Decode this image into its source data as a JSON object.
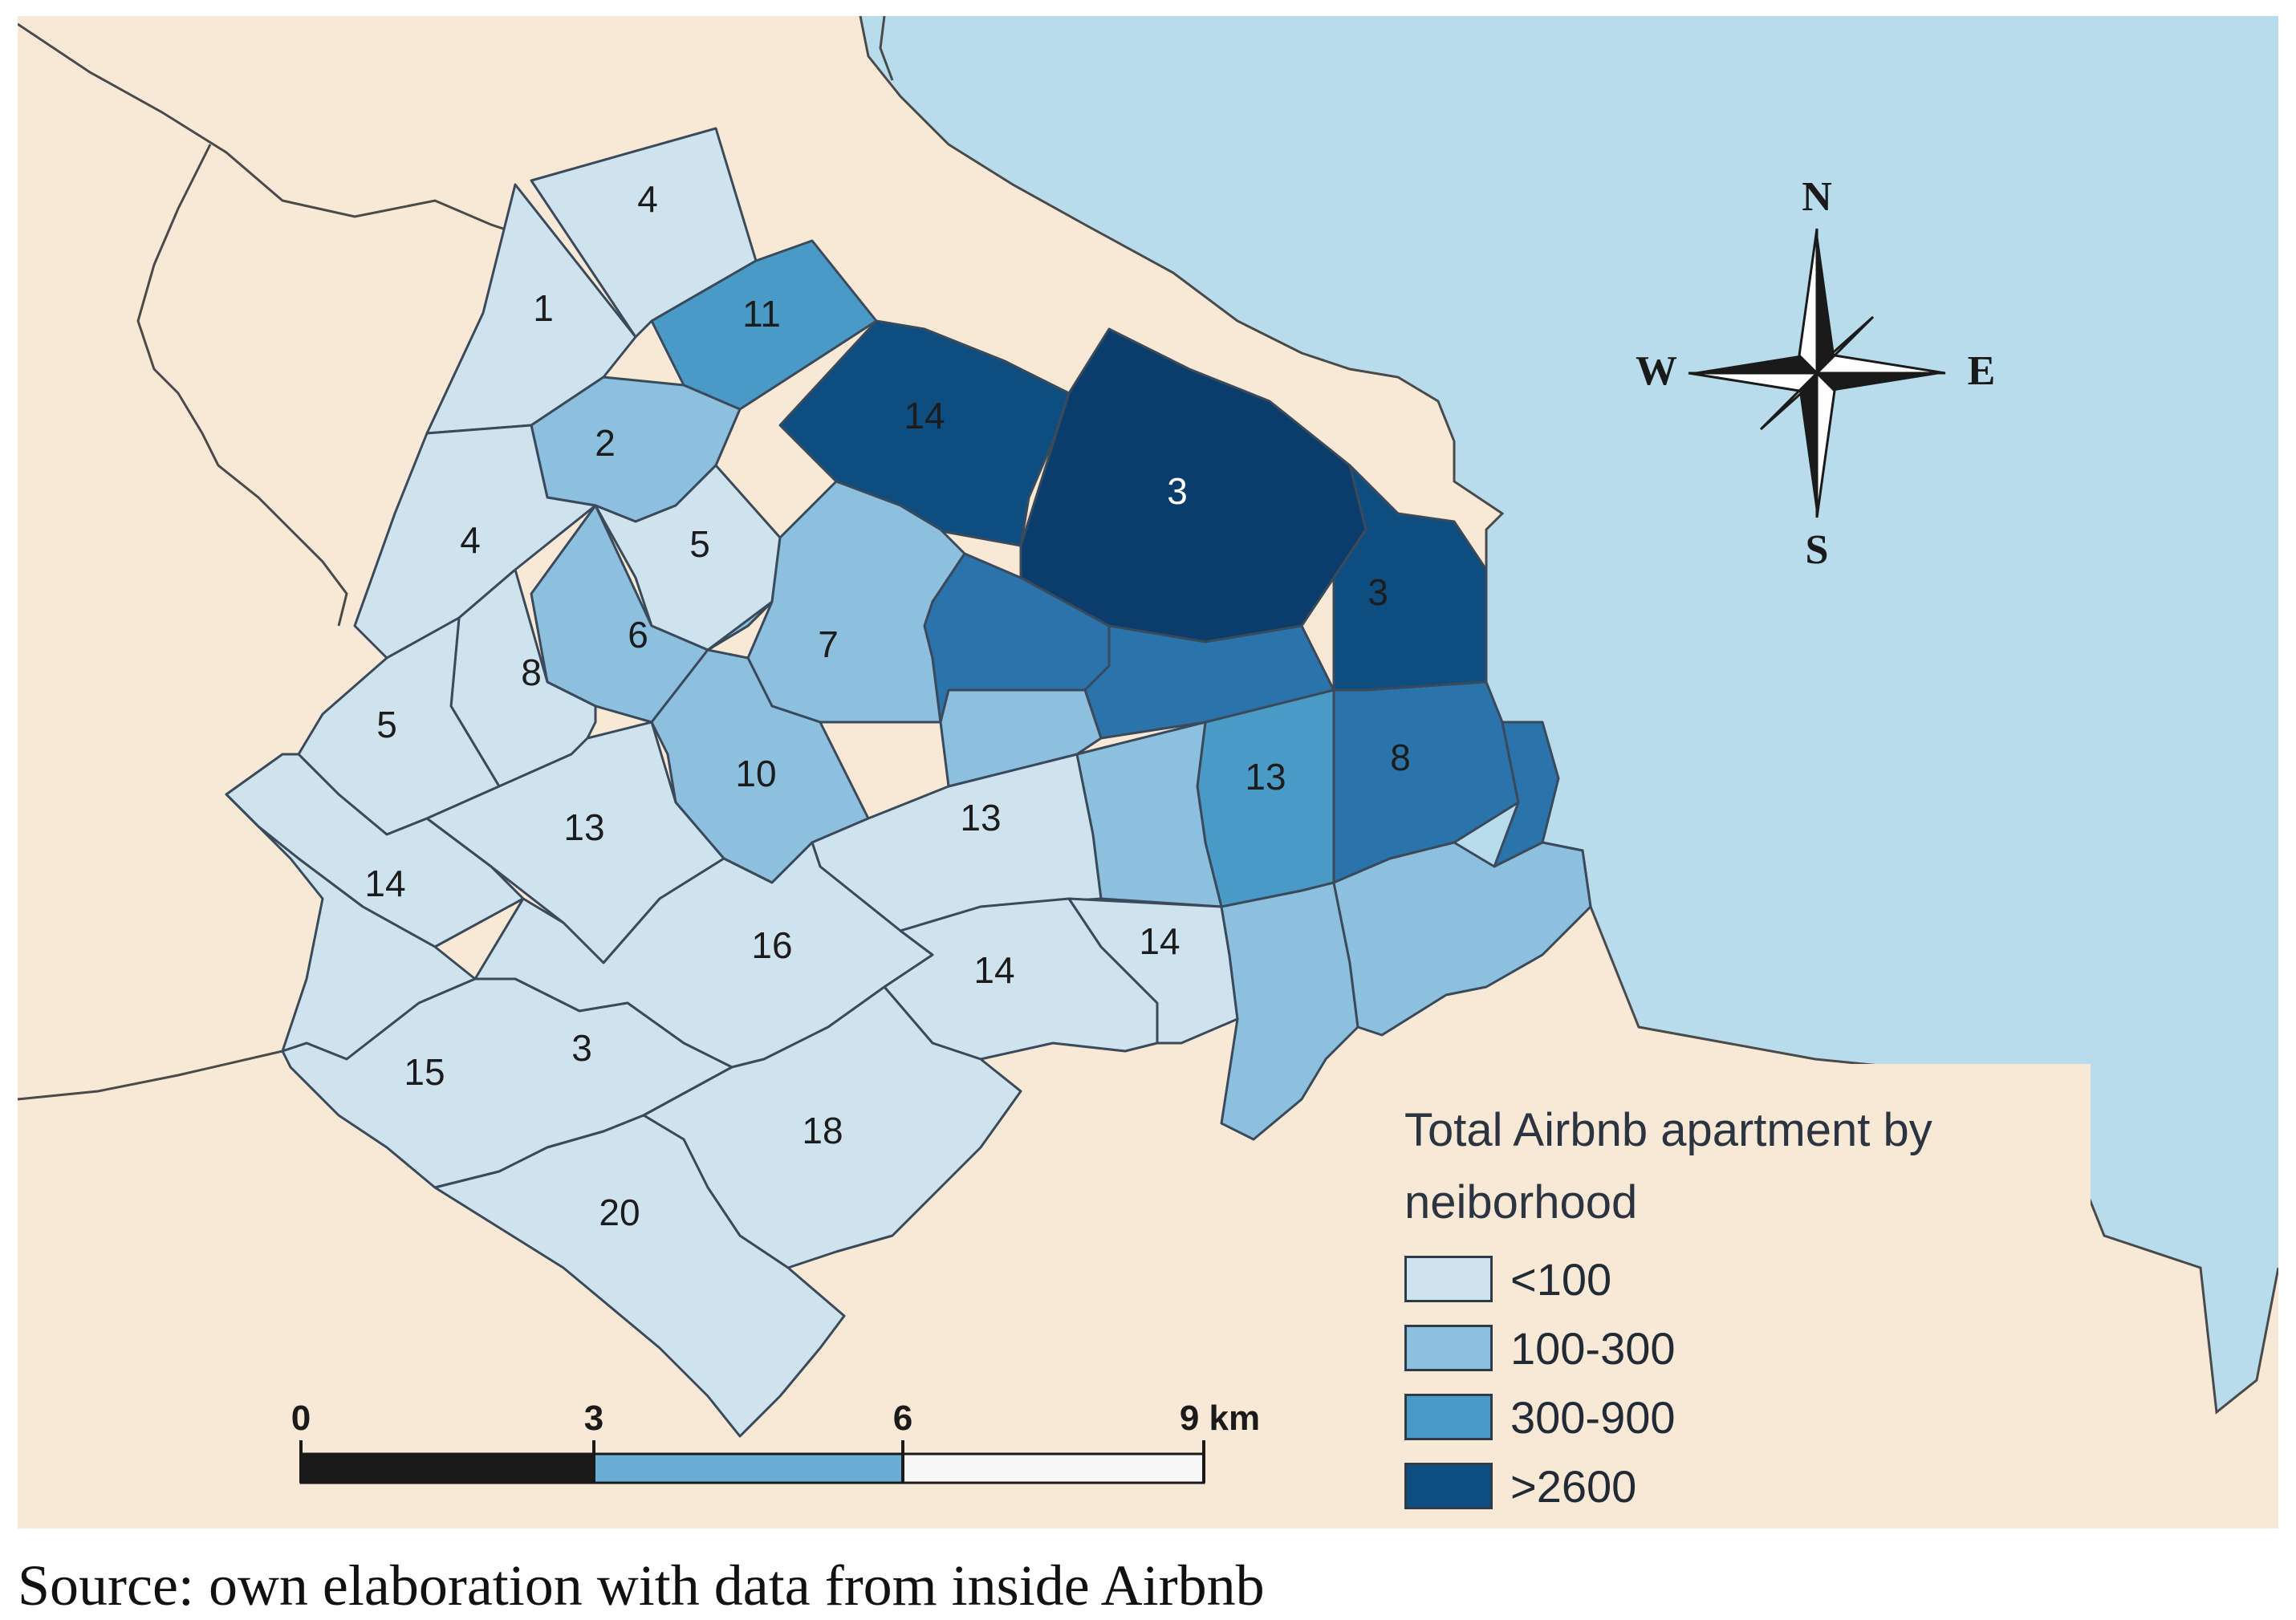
{
  "colors": {
    "land": "#f7e9d6",
    "water": "#b9dced",
    "boundary": "#4a4a4a",
    "class_lt100": "#cfe3ef",
    "class_100_300": "#8dbfde",
    "class_300_900": "#4a9ac8",
    "class_900_2600": "#2a73ab",
    "class_gt2600": "#0d4d80"
  },
  "neighborhoods": [
    {
      "label": "4"
    },
    {
      "label": "1"
    },
    {
      "label": "11"
    },
    {
      "label": "14"
    },
    {
      "label": "2"
    },
    {
      "label": "4"
    },
    {
      "label": "5"
    },
    {
      "label": "3"
    },
    {
      "label": "3"
    },
    {
      "label": "6"
    },
    {
      "label": "7"
    },
    {
      "label": "8"
    },
    {
      "label": "5"
    },
    {
      "label": "10"
    },
    {
      "label": "13"
    },
    {
      "label": "13"
    },
    {
      "label": "8"
    },
    {
      "label": "13"
    },
    {
      "label": "14"
    },
    {
      "label": "16"
    },
    {
      "label": "14"
    },
    {
      "label": "14"
    },
    {
      "label": "15"
    },
    {
      "label": "3"
    },
    {
      "label": "18"
    },
    {
      "label": "20"
    }
  ],
  "compass": {
    "n": "N",
    "s": "S",
    "e": "E",
    "w": "W"
  },
  "scale_bar": {
    "t0": "0",
    "t3": "3",
    "t6": "6",
    "t9": "9 km"
  },
  "legend": {
    "title": "Total Airbnb apartment by neiborhood",
    "items": [
      {
        "label": "<100",
        "color": "#cfe3ef"
      },
      {
        "label": "100-300",
        "color": "#8dbfde"
      },
      {
        "label": "300-900",
        "color": "#4a9ac8"
      },
      {
        "label": ">2600",
        "color": "#0d4d80"
      }
    ]
  },
  "caption": "Source: own elaboration with data from inside Airbnb"
}
